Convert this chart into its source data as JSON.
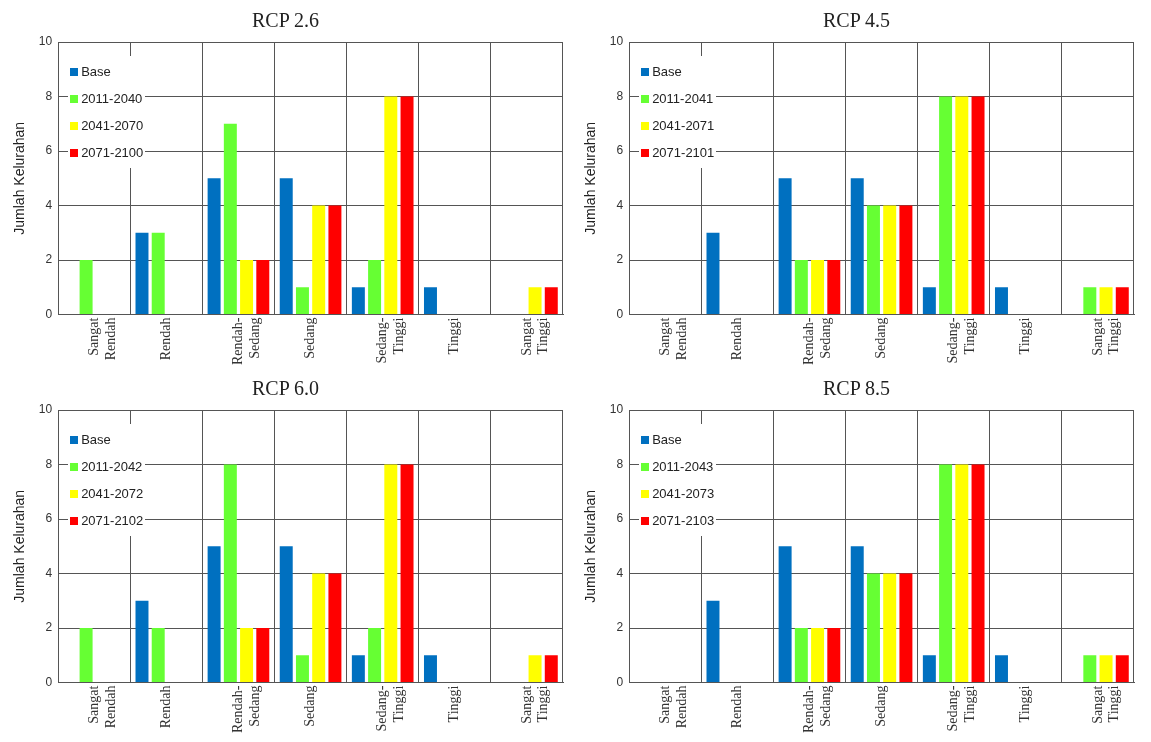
{
  "chart_data": [
    {
      "type": "bar",
      "title": "RCP 2.6",
      "ylabel": "Jumlah Kelurahan",
      "categories": [
        "Sangat Rendah",
        "Rendah",
        "Rendah-Sedang",
        "Sedang",
        "Sedang-Tinggi",
        "Tinggi",
        "Sangat Tinggi"
      ],
      "ylim": [
        0,
        10
      ],
      "yticks": [
        0,
        2,
        4,
        6,
        8,
        10
      ],
      "grid": true,
      "legend": "top left",
      "series": [
        {
          "name": "Base",
          "color": "#0070c0",
          "values": [
            0,
            3,
            5,
            5,
            1,
            1,
            0
          ]
        },
        {
          "name": "2011-2040",
          "color": "#66ff33",
          "values": [
            2,
            3,
            7,
            1,
            2,
            0,
            0
          ]
        },
        {
          "name": "2041-2070",
          "color": "#ffff00",
          "values": [
            0,
            0,
            2,
            4,
            8,
            0,
            1
          ]
        },
        {
          "name": "2071-2100",
          "color": "#ff0000",
          "values": [
            0,
            0,
            2,
            4,
            8,
            0,
            1
          ]
        }
      ]
    },
    {
      "type": "bar",
      "title": "RCP 4.5",
      "ylabel": "Jumlah Kelurahan",
      "categories": [
        "Sangat Rendah",
        "Rendah",
        "Rendah-Sedang",
        "Sedang",
        "Sedang-Tinggi",
        "Tinggi",
        "Sangat Tinggi"
      ],
      "ylim": [
        0,
        10
      ],
      "yticks": [
        0,
        2,
        4,
        6,
        8,
        10
      ],
      "grid": true,
      "legend": "top left",
      "series": [
        {
          "name": "Base",
          "color": "#0070c0",
          "values": [
            0,
            3,
            5,
            5,
            1,
            1,
            0
          ]
        },
        {
          "name": "2011-2041",
          "color": "#66ff33",
          "values": [
            0,
            0,
            2,
            4,
            8,
            0,
            1
          ]
        },
        {
          "name": "2041-2071",
          "color": "#ffff00",
          "values": [
            0,
            0,
            2,
            4,
            8,
            0,
            1
          ]
        },
        {
          "name": "2071-2101",
          "color": "#ff0000",
          "values": [
            0,
            0,
            2,
            4,
            8,
            0,
            1
          ]
        }
      ]
    },
    {
      "type": "bar",
      "title": "RCP 6.0",
      "ylabel": "Jumlah Kelurahan",
      "categories": [
        "Sangat Rendah",
        "Rendah",
        "Rendah-Sedang",
        "Sedang",
        "Sedang-Tinggi",
        "Tinggi",
        "Sangat Tinggi"
      ],
      "ylim": [
        0,
        10
      ],
      "yticks": [
        0,
        2,
        4,
        6,
        8,
        10
      ],
      "grid": true,
      "legend": "top left",
      "series": [
        {
          "name": "Base",
          "color": "#0070c0",
          "values": [
            0,
            3,
            5,
            5,
            1,
            1,
            0
          ]
        },
        {
          "name": "2011-2042",
          "color": "#66ff33",
          "values": [
            2,
            2,
            8,
            1,
            2,
            0,
            0
          ]
        },
        {
          "name": "2041-2072",
          "color": "#ffff00",
          "values": [
            0,
            0,
            2,
            4,
            8,
            0,
            1
          ]
        },
        {
          "name": "2071-2102",
          "color": "#ff0000",
          "values": [
            0,
            0,
            2,
            4,
            8,
            0,
            1
          ]
        }
      ]
    },
    {
      "type": "bar",
      "title": "RCP 8.5",
      "ylabel": "Jumlah Kelurahan",
      "categories": [
        "Sangat Rendah",
        "Rendah",
        "Rendah-Sedang",
        "Sedang",
        "Sedang-Tinggi",
        "Tinggi",
        "Sangat Tinggi"
      ],
      "ylim": [
        0,
        10
      ],
      "yticks": [
        0,
        2,
        4,
        6,
        8,
        10
      ],
      "grid": true,
      "legend": "top left",
      "series": [
        {
          "name": "Base",
          "color": "#0070c0",
          "values": [
            0,
            3,
            5,
            5,
            1,
            1,
            0
          ]
        },
        {
          "name": "2011-2043",
          "color": "#66ff33",
          "values": [
            0,
            0,
            2,
            4,
            8,
            0,
            1
          ]
        },
        {
          "name": "2041-2073",
          "color": "#ffff00",
          "values": [
            0,
            0,
            2,
            4,
            8,
            0,
            1
          ]
        },
        {
          "name": "2071-2103",
          "color": "#ff0000",
          "values": [
            0,
            0,
            2,
            4,
            8,
            0,
            1
          ]
        }
      ]
    }
  ]
}
